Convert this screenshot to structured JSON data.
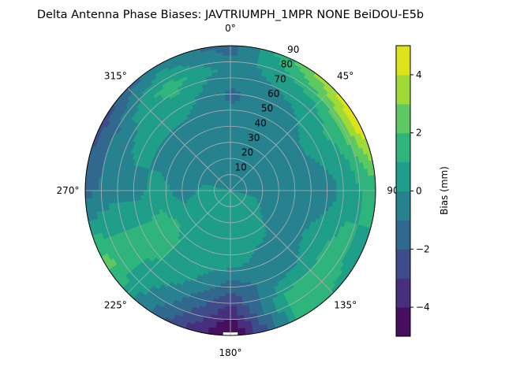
{
  "chart_data": {
    "type": "heatmap",
    "subtype": "polar filled contour",
    "title": "Delta Antenna Phase Biases: JAVTRIUMPH_1MPR NONE BeiDOU-E5b",
    "theta_direction": "clockwise",
    "theta_zero": "top",
    "theta_tick_labels": [
      {
        "angle": 0,
        "label": "0°"
      },
      {
        "angle": 45,
        "label": "45°"
      },
      {
        "angle": 90,
        "label": "90"
      },
      {
        "angle": 135,
        "label": "135°"
      },
      {
        "angle": 180,
        "label": "180°"
      },
      {
        "angle": 225,
        "label": "225°"
      },
      {
        "angle": 270,
        "label": "270°"
      },
      {
        "angle": 315,
        "label": "315°"
      }
    ],
    "r_tick_labels": [
      "10",
      "20",
      "30",
      "40",
      "50",
      "60",
      "70",
      "80",
      "90"
    ],
    "r_ticks": [
      10,
      20,
      30,
      40,
      50,
      60,
      70,
      80,
      90
    ],
    "rlim": [
      0,
      90
    ],
    "grid": true,
    "levels": [
      -5,
      -4,
      -3,
      -2,
      -1,
      0,
      1,
      2,
      3,
      4,
      5
    ],
    "colormap": "viridis",
    "band_colors": [
      "#46105f",
      "#472f7d",
      "#3e4c8a",
      "#31688e",
      "#26828e",
      "#1f9e89",
      "#2fb47c",
      "#5ec962",
      "#a0da39",
      "#dde318"
    ],
    "colorbar": {
      "label": "Bias (mm)",
      "ticks": [
        -4,
        -2,
        0,
        2,
        4
      ],
      "tick_labels": [
        "−4",
        "−2",
        "0",
        "2",
        "4"
      ],
      "range": [
        -5,
        5
      ]
    },
    "grid_azimuth_deg": [
      0,
      30,
      60,
      90,
      120,
      150,
      180,
      210,
      240,
      270,
      300,
      330
    ],
    "grid_radius": [
      0,
      15,
      30,
      45,
      60,
      75,
      90
    ],
    "z_bias_mm": [
      [
        0.0,
        -0.5,
        -0.5,
        -0.7,
        -1.2,
        -0.5,
        -1.5
      ],
      [
        0.0,
        -0.5,
        -0.5,
        -0.5,
        -0.5,
        0.5,
        2.5
      ],
      [
        0.0,
        -0.5,
        -0.5,
        -0.3,
        0.5,
        1.5,
        5.3
      ],
      [
        0.0,
        -0.3,
        -0.5,
        -0.5,
        -0.5,
        0.5,
        1.5
      ],
      [
        0.0,
        0.3,
        -0.5,
        -0.5,
        0.5,
        1.5,
        0.5
      ],
      [
        0.0,
        0.5,
        0.5,
        -0.5,
        -0.5,
        1.5,
        1.5
      ],
      [
        0.0,
        0.5,
        0.5,
        0.5,
        -1.5,
        -3.5,
        -5.5
      ],
      [
        0.0,
        0.5,
        0.5,
        0.5,
        0.5,
        -0.5,
        -1.5
      ],
      [
        0.0,
        0.5,
        0.5,
        1.5,
        1.5,
        1.5,
        2.5
      ],
      [
        0.0,
        0.3,
        -0.5,
        0.5,
        -0.5,
        -0.5,
        -1.5
      ],
      [
        0.0,
        -0.3,
        -0.5,
        -0.5,
        0.5,
        -0.5,
        -2.5
      ],
      [
        0.0,
        -0.5,
        -0.5,
        -0.5,
        0.5,
        1.5,
        -0.5
      ]
    ]
  }
}
